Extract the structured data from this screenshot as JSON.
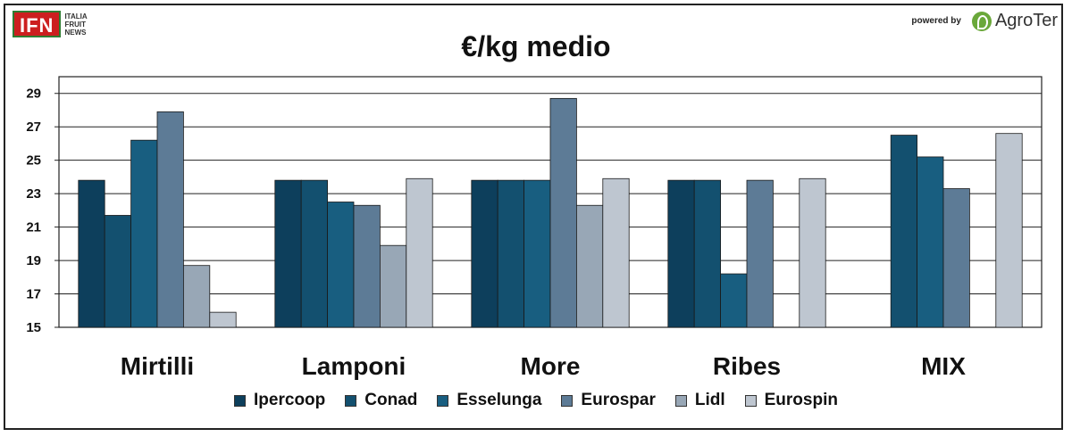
{
  "header": {
    "logo_left_text": "IFN",
    "logo_left_sub": [
      "ITALIA",
      "FRUIT",
      "NEWS"
    ],
    "powered_by": "powered by",
    "logo_right_text": "AgroTer"
  },
  "chart_data": {
    "type": "bar",
    "title": "€/kg medio",
    "categories": [
      "Mirtilli",
      "Lamponi",
      "More",
      "Ribes",
      "MIX"
    ],
    "series": [
      {
        "name": "Ipercoop",
        "color": "#0d3f5c",
        "values": [
          23.8,
          23.8,
          23.8,
          23.8,
          null
        ]
      },
      {
        "name": "Conad",
        "color": "#13506f",
        "values": [
          21.7,
          23.8,
          23.8,
          23.8,
          26.5
        ]
      },
      {
        "name": "Esselunga",
        "color": "#185e80",
        "values": [
          26.2,
          22.5,
          23.8,
          18.2,
          25.2
        ]
      },
      {
        "name": "Eurospar",
        "color": "#5d7b96",
        "values": [
          27.9,
          22.3,
          28.7,
          23.8,
          23.3
        ]
      },
      {
        "name": "Lidl",
        "color": "#98a7b6",
        "values": [
          18.7,
          19.9,
          22.3,
          null,
          null
        ]
      },
      {
        "name": "Eurospin",
        "color": "#bec6d0",
        "values": [
          15.9,
          23.9,
          23.9,
          23.9,
          26.6
        ]
      }
    ],
    "y_ticks": [
      "15",
      "17",
      "19",
      "21",
      "23",
      "25",
      "27",
      "29"
    ],
    "ylim": [
      15,
      30
    ],
    "grid": true,
    "legend_position": "bottom"
  }
}
